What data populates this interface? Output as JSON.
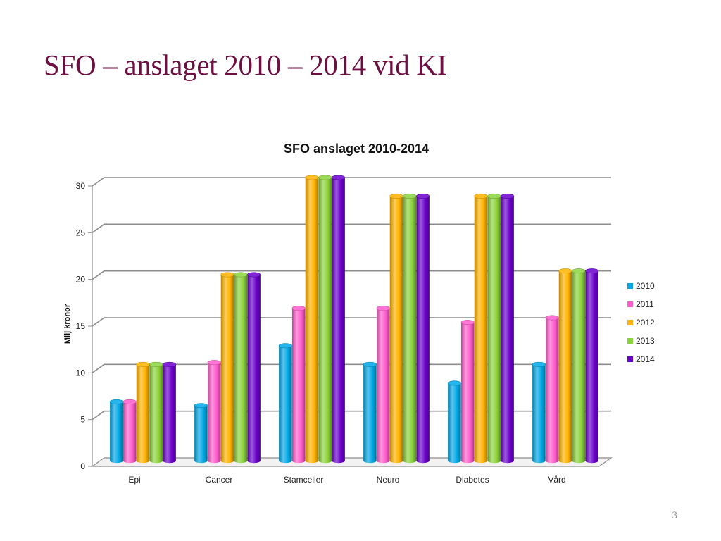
{
  "slide": {
    "title": "SFO – anslaget 2010 – 2014 vid KI",
    "page_number": "3"
  },
  "chart_data": {
    "type": "bar",
    "title": "SFO anslaget 2010-2014",
    "xlabel": "",
    "ylabel": "Milj kronor",
    "ylim": [
      0,
      30
    ],
    "yticks": [
      0,
      5,
      10,
      15,
      20,
      25,
      30
    ],
    "grid": true,
    "legend_position": "right",
    "categories": [
      "Epi",
      "Cancer",
      "Stamceller",
      "Neuro",
      "Diabetes",
      "Vård"
    ],
    "series": [
      {
        "name": "2010",
        "color": "#00a8e8",
        "values": [
          6,
          5.6,
          12,
          10,
          8,
          10
        ]
      },
      {
        "name": "2011",
        "color": "#ff5ccd",
        "values": [
          6,
          10.2,
          16,
          16,
          14.5,
          15
        ]
      },
      {
        "name": "2012",
        "color": "#ffb300",
        "values": [
          10,
          19.6,
          30,
          28,
          28,
          20
        ]
      },
      {
        "name": "2013",
        "color": "#8bd33c",
        "values": [
          10,
          19.6,
          30,
          28,
          28,
          20
        ]
      },
      {
        "name": "2014",
        "color": "#6a00cc",
        "values": [
          10,
          19.6,
          30,
          28,
          28,
          20
        ]
      }
    ]
  }
}
